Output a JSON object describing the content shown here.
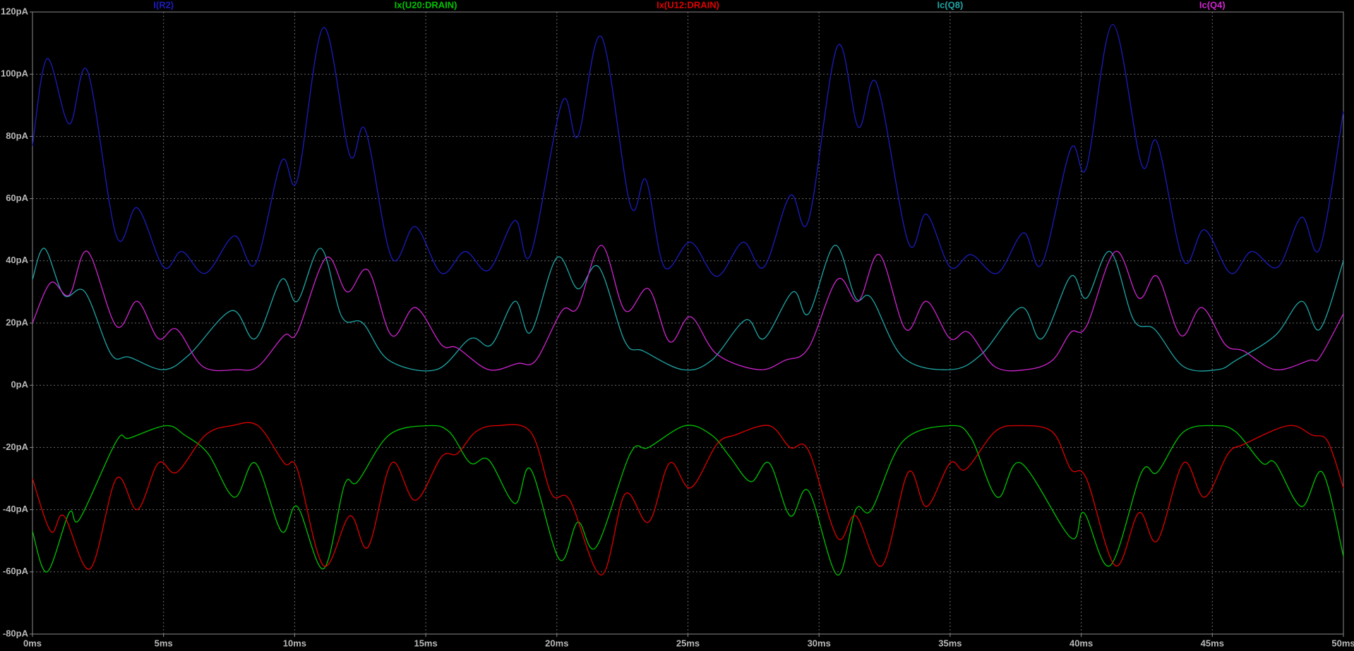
{
  "chart_data": {
    "type": "line",
    "xlim": [
      0,
      50
    ],
    "xticks": [
      {
        "value": 0,
        "label": "0ms"
      },
      {
        "value": 5,
        "label": "5ms"
      },
      {
        "value": 10,
        "label": "10ms"
      },
      {
        "value": 15,
        "label": "15ms"
      },
      {
        "value": 20,
        "label": "20ms"
      },
      {
        "value": 25,
        "label": "25ms"
      },
      {
        "value": 30,
        "label": "30ms"
      },
      {
        "value": 35,
        "label": "35ms"
      },
      {
        "value": 40,
        "label": "40ms"
      },
      {
        "value": 45,
        "label": "45ms"
      },
      {
        "value": 50,
        "label": "50ms"
      }
    ],
    "ylim": [
      -80,
      120
    ],
    "yticks": [
      {
        "value": -80,
        "label": "-80pA"
      },
      {
        "value": -60,
        "label": "-60pA"
      },
      {
        "value": -40,
        "label": "-40pA"
      },
      {
        "value": -20,
        "label": "-20pA"
      },
      {
        "value": 0,
        "label": "0pA"
      },
      {
        "value": 20,
        "label": "20pA"
      },
      {
        "value": 40,
        "label": "40pA"
      },
      {
        "value": 60,
        "label": "60pA"
      },
      {
        "value": 80,
        "label": "80pA"
      },
      {
        "value": 100,
        "label": "100pA"
      },
      {
        "value": 120,
        "label": "120pA"
      }
    ],
    "grid": true,
    "series": [
      {
        "name": "I(R2)",
        "color": "#1c1cc0",
        "x": [
          0,
          0.56,
          1.4,
          2.1,
          3.2,
          4.0,
          5.0,
          5.7,
          6.6,
          7.7,
          8.5,
          9.5,
          10.1,
          11.1,
          12.1,
          12.7,
          13.7,
          14.6,
          15.6,
          16.5,
          17.4,
          18.4,
          19.0,
          20.2,
          20.8,
          21.7,
          22.8,
          23.4,
          24.1,
          25.1,
          26.1,
          27.1,
          27.9,
          28.9,
          29.6,
          30.7,
          31.5,
          32.2,
          33.4,
          34.1,
          35.0,
          35.8,
          36.8,
          37.8,
          38.5,
          39.6,
          40.2,
          41.2,
          42.3,
          42.9,
          43.9,
          44.7,
          45.7,
          46.5,
          47.5,
          48.4,
          49.1,
          50
        ],
        "values": [
          77,
          105,
          84,
          101,
          48,
          57,
          38,
          43,
          36,
          48,
          39,
          72,
          66,
          115,
          74,
          82,
          41,
          51,
          36,
          43,
          37,
          53,
          42,
          91,
          80,
          112,
          58,
          66,
          38,
          46,
          35,
          46,
          38,
          61,
          53,
          109,
          83,
          97,
          46,
          55,
          38,
          42,
          36,
          49,
          39,
          76,
          70,
          116,
          71,
          78,
          40,
          50,
          36,
          43,
          38,
          54,
          44,
          88
        ]
      },
      {
        "name": "Ix(U20:DRAIN)",
        "color": "#00c400",
        "x": [
          0,
          0.56,
          1.4,
          1.8,
          3.2,
          3.7,
          5.1,
          5.8,
          6.7,
          7.7,
          8.5,
          9.5,
          10.1,
          11.1,
          11.9,
          12.4,
          13.6,
          15.1,
          15.9,
          16.7,
          17.4,
          18.4,
          19.0,
          20.1,
          20.8,
          21.5,
          22.8,
          23.5,
          24.9,
          25.9,
          26.6,
          27.4,
          28.1,
          28.9,
          29.6,
          30.7,
          31.4,
          32.0,
          33.2,
          35.0,
          35.8,
          36.8,
          37.7,
          39.6,
          40.1,
          41.1,
          42.3,
          42.9,
          43.9,
          45.1,
          45.9,
          46.9,
          47.4,
          48.4,
          49.2,
          50
        ],
        "values": [
          -47,
          -60,
          -41,
          -43,
          -18,
          -17,
          -13,
          -16,
          -22,
          -36,
          -25,
          -47,
          -39,
          -59,
          -32,
          -31,
          -16,
          -13,
          -15,
          -25,
          -24,
          -38,
          -27,
          -56,
          -44,
          -52,
          -22,
          -20,
          -13,
          -16,
          -23,
          -31,
          -25,
          -42,
          -34,
          -61,
          -40,
          -40,
          -18,
          -13,
          -17,
          -36,
          -25,
          -49,
          -41,
          -58,
          -28,
          -28,
          -15,
          -13,
          -15,
          -25,
          -25,
          -39,
          -28,
          -55
        ]
      },
      {
        "name": "Ix(U12:DRAIN)",
        "color": "#e00000",
        "x": [
          0,
          0.7,
          1.2,
          2.2,
          3.2,
          4.0,
          4.8,
          5.5,
          6.6,
          7.6,
          8.6,
          9.6,
          10.1,
          11.1,
          12.1,
          12.8,
          13.7,
          14.6,
          15.6,
          16.2,
          16.9,
          17.7,
          19.0,
          19.8,
          20.5,
          21.7,
          22.6,
          23.5,
          24.3,
          25.1,
          26.1,
          26.8,
          28.1,
          28.9,
          29.6,
          30.7,
          31.4,
          32.4,
          33.4,
          34.1,
          35.0,
          35.6,
          36.7,
          37.6,
          38.9,
          39.6,
          40.2,
          41.3,
          42.2,
          42.9,
          43.9,
          44.7,
          45.6,
          46.2,
          47.9,
          48.8,
          49.4,
          50
        ],
        "values": [
          -30,
          -47,
          -42,
          -59,
          -30,
          -40,
          -25,
          -28,
          -16,
          -13,
          -13,
          -25,
          -27,
          -58,
          -42,
          -52,
          -25,
          -37,
          -23,
          -22,
          -15,
          -13,
          -15,
          -35,
          -37,
          -61,
          -35,
          -44,
          -25,
          -33,
          -19,
          -16,
          -13,
          -20,
          -21,
          -49,
          -42,
          -58,
          -28,
          -39,
          -25,
          -27,
          -15,
          -13,
          -15,
          -27,
          -30,
          -58,
          -41,
          -50,
          -25,
          -36,
          -22,
          -19,
          -13,
          -16,
          -18,
          -33
        ]
      },
      {
        "name": "Ic(Q8)",
        "color": "#1ea6a6",
        "x": [
          0,
          0.46,
          1.2,
          2.0,
          3.0,
          3.7,
          5.0,
          6.0,
          7.6,
          8.5,
          9.5,
          10.1,
          11.0,
          11.8,
          12.6,
          13.6,
          15.4,
          16.7,
          17.5,
          18.4,
          19.0,
          20.0,
          20.8,
          21.6,
          22.6,
          23.3,
          24.8,
          25.9,
          27.2,
          27.9,
          29.0,
          29.6,
          30.6,
          31.4,
          32.0,
          33.2,
          35.0,
          36.2,
          37.7,
          38.5,
          39.6,
          40.2,
          41.1,
          42.0,
          42.8,
          43.9,
          45.2,
          45.9,
          47.4,
          48.4,
          49.1,
          50
        ],
        "values": [
          34,
          44,
          29,
          30,
          10,
          9,
          5,
          10,
          24,
          15,
          34,
          27,
          44,
          22,
          20,
          8,
          5,
          15,
          13,
          27,
          17,
          41,
          31,
          38,
          14,
          11,
          5,
          8,
          21,
          15,
          30,
          23,
          45,
          28,
          28,
          9,
          5,
          10,
          25,
          15,
          35,
          28,
          43,
          21,
          18,
          6,
          5,
          8,
          16,
          27,
          18,
          40
        ]
      },
      {
        "name": "Ic(Q4)",
        "color": "#d024d0",
        "x": [
          0,
          0.7,
          1.4,
          2.1,
          3.2,
          4.0,
          4.8,
          5.5,
          6.5,
          7.8,
          8.6,
          9.6,
          10.1,
          11.2,
          12.0,
          12.8,
          13.7,
          14.6,
          15.6,
          16.2,
          17.4,
          18.5,
          19.2,
          20.2,
          20.8,
          21.7,
          22.6,
          23.5,
          24.3,
          25.1,
          26.1,
          27.7,
          28.7,
          29.6,
          30.7,
          31.5,
          32.3,
          33.3,
          34.1,
          35.0,
          35.7,
          36.7,
          37.9,
          38.9,
          39.6,
          40.2,
          41.3,
          42.2,
          42.9,
          43.8,
          44.6,
          45.5,
          46.2,
          47.4,
          48.7,
          49.1,
          50
        ],
        "values": [
          20,
          33,
          29,
          43,
          19,
          27,
          15,
          18,
          6,
          5,
          6,
          16,
          17,
          41,
          30,
          37,
          16,
          25,
          13,
          12,
          5,
          7,
          8,
          24,
          25,
          45,
          24,
          31,
          14,
          22,
          10,
          5,
          8,
          12,
          34,
          27,
          42,
          18,
          27,
          15,
          17,
          6,
          5,
          8,
          17,
          19,
          43,
          28,
          35,
          16,
          25,
          13,
          11,
          5,
          8,
          9,
          23
        ]
      }
    ]
  }
}
